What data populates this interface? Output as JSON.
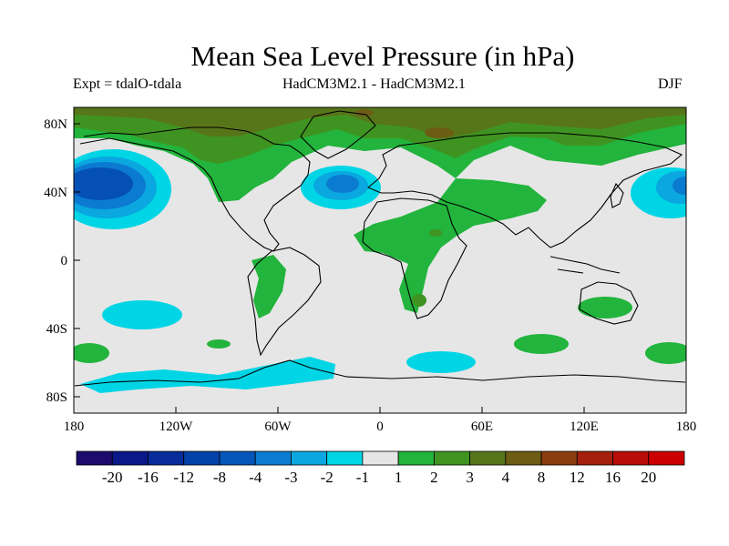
{
  "title": "Mean Sea Level Pressure (in hPa)",
  "experiment": "Expt = tdalO-tdala",
  "models": "HadCM3M2.1 - HadCM3M2.1",
  "season": "DJF",
  "map": {
    "lat_ticks": [
      "80N",
      "40N",
      "0",
      "40S",
      "80S"
    ],
    "lon_ticks": [
      "180",
      "120W",
      "60W",
      "0",
      "60E",
      "120E",
      "180"
    ],
    "fill_colors": {
      "neutral": "#e6e6e6",
      "green_1": "#22b43c",
      "green_2": "#3f9421",
      "olive_3": "#57761a",
      "brown_4": "#6c5c14",
      "cyan_m1": "#00d5e5",
      "blue_m2": "#0aa7e0",
      "blue_m3": "#0b7bd1",
      "blue_m4": "#0550b4"
    }
  },
  "colorbar": {
    "labels": [
      "-20",
      "-16",
      "-12",
      "-8",
      "-4",
      "-3",
      "-2",
      "-1",
      "1",
      "2",
      "3",
      "4",
      "8",
      "12",
      "16",
      "20"
    ],
    "colors": [
      "#1c0a6c",
      "#0b1887",
      "#0a2c9a",
      "#0342a8",
      "#0556b8",
      "#0b7bd1",
      "#0aa7e0",
      "#00d5e5",
      "#e6e6e6",
      "#22b43c",
      "#3f9421",
      "#57761a",
      "#6c5c14",
      "#8a3d10",
      "#a4200c",
      "#b80d09",
      "#cc0000"
    ]
  }
}
